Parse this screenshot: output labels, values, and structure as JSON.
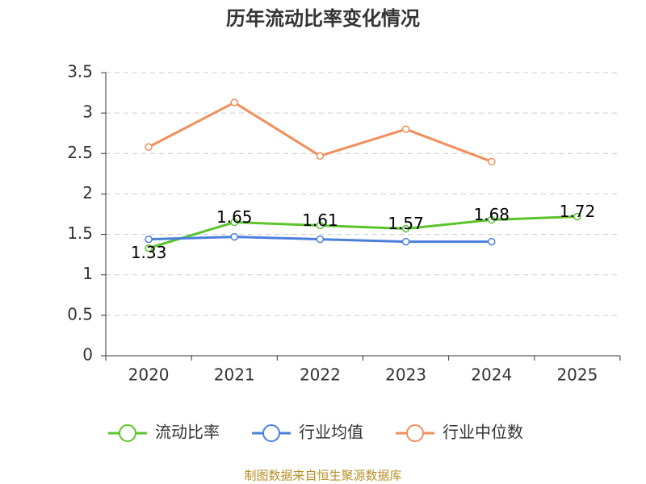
{
  "chart_data": {
    "type": "line",
    "title": "历年流动比率变化情况",
    "categories": [
      "2020",
      "2021",
      "2022",
      "2023",
      "2024",
      "2025"
    ],
    "series": [
      {
        "name": "流动比率",
        "color": "#5bc42b",
        "values": [
          1.33,
          1.65,
          1.61,
          1.57,
          1.68,
          1.72
        ],
        "labels": true
      },
      {
        "name": "行业均值",
        "color": "#4a7fdc",
        "values": [
          1.44,
          1.47,
          1.44,
          1.41,
          1.41,
          null
        ]
      },
      {
        "name": "行业中位数",
        "color": "#f28e5b",
        "values": [
          2.58,
          3.13,
          2.47,
          2.8,
          2.4,
          null
        ]
      }
    ],
    "ylim": [
      0,
      3.5
    ],
    "yticks": [
      0,
      0.5,
      1,
      1.5,
      2,
      2.5,
      3,
      3.5
    ],
    "grid": true
  },
  "source": "制图数据来自恒生聚源数据库"
}
